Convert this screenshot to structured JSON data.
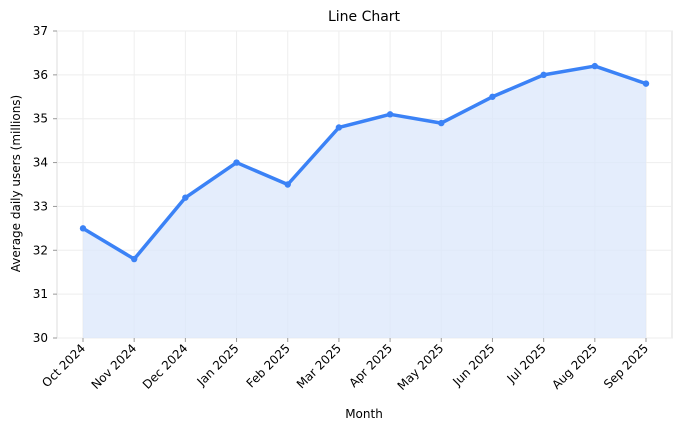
{
  "chart_data": {
    "type": "line",
    "title": "Line Chart",
    "xlabel": "Month",
    "ylabel": "Average daily users (millions)",
    "categories": [
      "Oct 2024",
      "Nov 2024",
      "Dec 2024",
      "Jan 2025",
      "Feb 2025",
      "Mar 2025",
      "Apr 2025",
      "May 2025",
      "Jun 2025",
      "Jul 2025",
      "Aug 2025",
      "Sep 2025"
    ],
    "series": [
      {
        "values": [
          32.5,
          31.8,
          33.2,
          34.0,
          33.5,
          34.8,
          35.1,
          34.9,
          35.5,
          36.0,
          36.2,
          35.8
        ]
      }
    ],
    "ylim": [
      30,
      37
    ],
    "yticks": [
      30,
      31,
      32,
      33,
      34,
      35,
      36,
      37
    ],
    "grid": true,
    "area_fill": true,
    "markers": true,
    "colors": {
      "line": "#3b82f6",
      "area": "#dbe7fb",
      "grid": "#eeeeee",
      "spine": "#dddddd"
    }
  }
}
